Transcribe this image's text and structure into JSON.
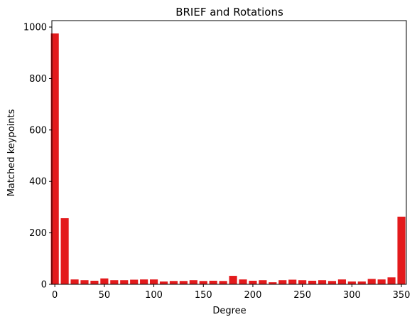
{
  "chart_data": {
    "type": "bar",
    "title": "BRIEF and Rotations",
    "xlabel": "Degree",
    "ylabel": "Matched keypoints",
    "x": [
      0,
      10,
      20,
      30,
      40,
      50,
      60,
      70,
      80,
      90,
      100,
      110,
      120,
      130,
      140,
      150,
      160,
      170,
      180,
      190,
      200,
      210,
      220,
      230,
      240,
      250,
      260,
      270,
      280,
      290,
      300,
      310,
      320,
      330,
      340,
      350
    ],
    "values": [
      975,
      257,
      19,
      16,
      14,
      23,
      16,
      16,
      18,
      19,
      19,
      11,
      13,
      13,
      16,
      13,
      14,
      13,
      33,
      19,
      14,
      16,
      8,
      16,
      18,
      16,
      14,
      16,
      13,
      19,
      11,
      11,
      21,
      19,
      27,
      263
    ],
    "xlim": [
      -3,
      355
    ],
    "ylim": [
      0,
      1025
    ],
    "xticks": [
      0,
      50,
      100,
      150,
      200,
      250,
      300,
      350
    ],
    "yticks": [
      0,
      200,
      400,
      600,
      800,
      1000
    ],
    "bar_width_units": 8,
    "bar_color": "#e31a1c",
    "grid": false,
    "legend": "none"
  }
}
